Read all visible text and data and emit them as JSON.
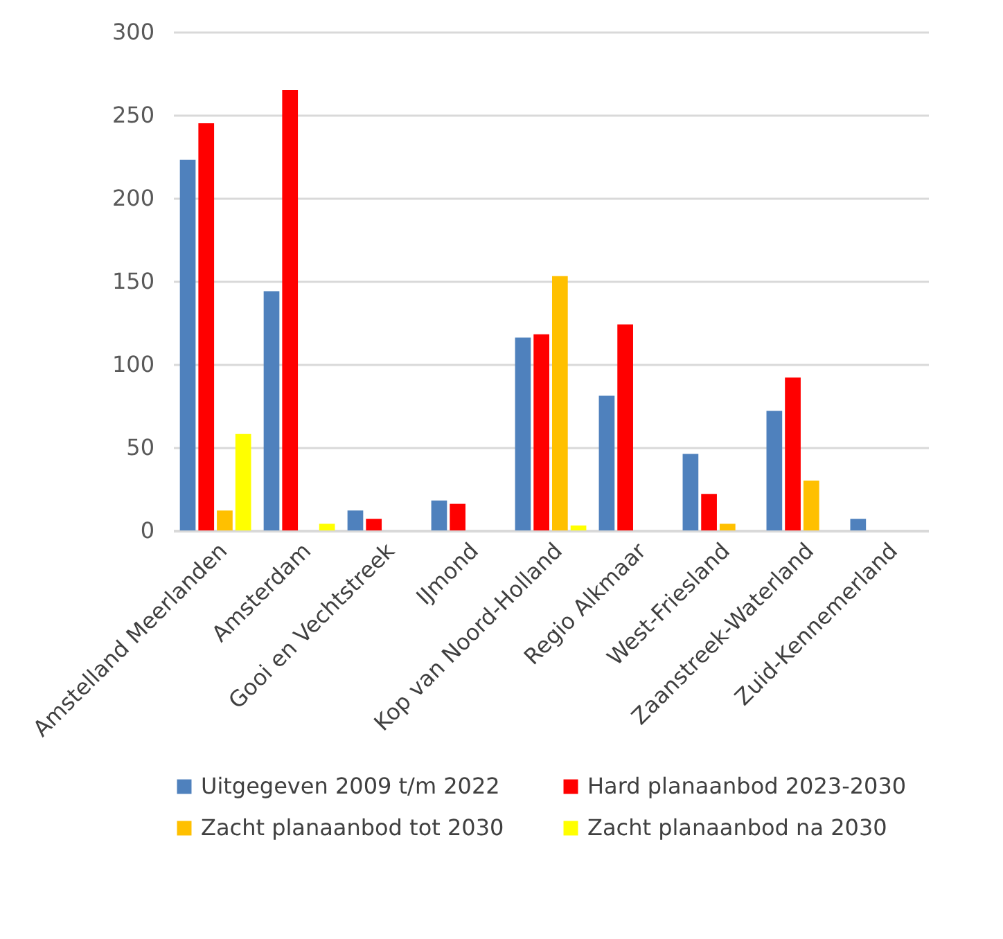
{
  "chart_data": {
    "type": "bar",
    "categories": [
      "Amstelland Meerlanden",
      "Amsterdam",
      "Gooi en Vechtstreek",
      "IJmond",
      "Kop van Noord-Holland",
      "Regio Alkmaar",
      "West-Friesland",
      "Zaanstreek-Waterland",
      "Zuid-Kennemerland"
    ],
    "series": [
      {
        "name": "Uitgegeven 2009 t/m 2022",
        "color": "#4f81bd",
        "values": [
          223,
          144,
          12,
          18,
          116,
          81,
          46,
          72,
          7
        ]
      },
      {
        "name": "Hard planaanbod 2023-2030",
        "color": "#ff0000",
        "values": [
          245,
          265,
          7,
          16,
          118,
          124,
          22,
          92,
          null
        ]
      },
      {
        "name": "Zacht planaanbod tot 2030",
        "color": "#ffc000",
        "values": [
          12,
          null,
          null,
          null,
          153,
          null,
          4,
          30,
          null
        ]
      },
      {
        "name": "Zacht planaanbod na 2030",
        "color": "#ffff00",
        "values": [
          58,
          4,
          null,
          null,
          3,
          null,
          null,
          null,
          null
        ]
      }
    ],
    "ylim": [
      0,
      300
    ],
    "yticks": [
      0,
      50,
      100,
      150,
      200,
      250,
      300
    ],
    "grid": "y",
    "legend": "bottom"
  }
}
